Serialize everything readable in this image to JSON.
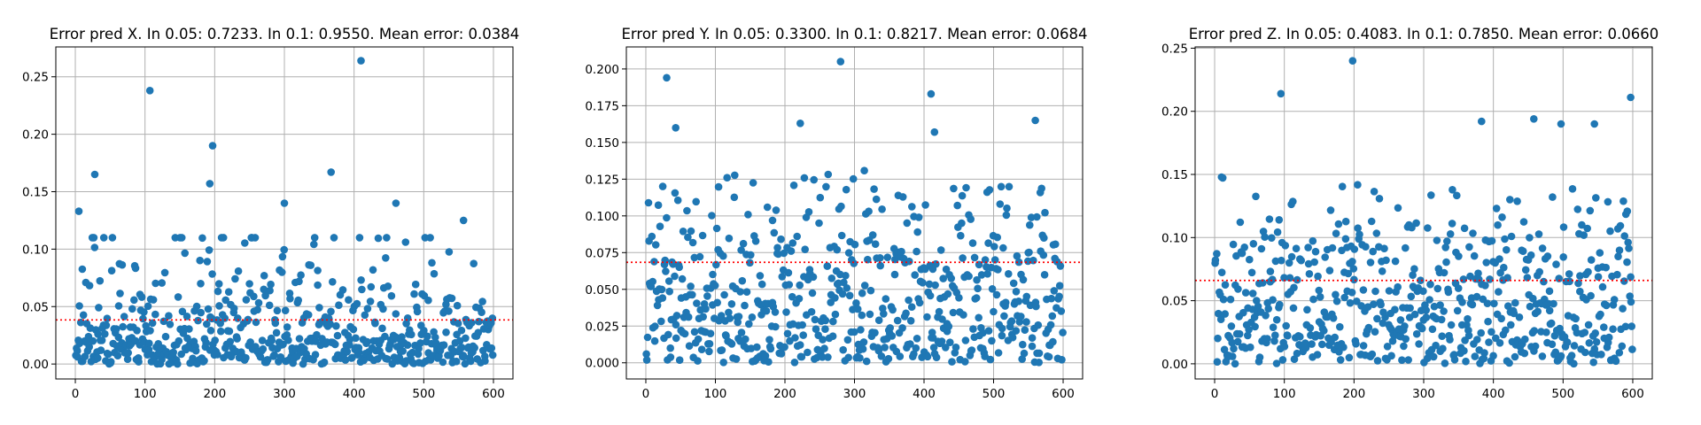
{
  "colors": {
    "point": "#1f77b4",
    "mean_line": "#ff0000",
    "grid": "#b0b0b0"
  },
  "chart_data": [
    {
      "type": "scatter",
      "title": "Error pred X. In 0.05: 0.7233. In 0.1: 0.9550. Mean error: 0.0384",
      "xlabel": "",
      "ylabel": "",
      "xlim": [
        -28,
        628
      ],
      "ylim": [
        -0.013,
        0.276
      ],
      "xticks": [
        0,
        100,
        200,
        300,
        400,
        500,
        600
      ],
      "xtick_labels": [
        "0",
        "100",
        "200",
        "300",
        "400",
        "500",
        "600"
      ],
      "yticks": [
        0,
        0.05,
        0.1,
        0.15,
        0.2,
        0.25
      ],
      "ytick_labels": [
        "0.00",
        "0.05",
        "0.10",
        "0.15",
        "0.20",
        "0.25"
      ],
      "grid": true,
      "mean_error": 0.0384,
      "n_points": 600,
      "notable_points": [
        {
          "x": 5,
          "y": 0.133
        },
        {
          "x": 28,
          "y": 0.165
        },
        {
          "x": 107,
          "y": 0.238
        },
        {
          "x": 193,
          "y": 0.157
        },
        {
          "x": 197,
          "y": 0.19
        },
        {
          "x": 300,
          "y": 0.14
        },
        {
          "x": 367,
          "y": 0.167
        },
        {
          "x": 410,
          "y": 0.264
        },
        {
          "x": 460,
          "y": 0.14
        },
        {
          "x": 557,
          "y": 0.125
        }
      ],
      "bulk_max": 0.11
    },
    {
      "type": "scatter",
      "title": "Error pred Y. In 0.05: 0.3300. In 0.1: 0.8217. Mean error: 0.0684",
      "xlabel": "",
      "ylabel": "",
      "xlim": [
        -28,
        628
      ],
      "ylim": [
        -0.011,
        0.215
      ],
      "xticks": [
        0,
        100,
        200,
        300,
        400,
        500,
        600
      ],
      "xtick_labels": [
        "0",
        "100",
        "200",
        "300",
        "400",
        "500",
        "600"
      ],
      "yticks": [
        0,
        0.025,
        0.05,
        0.075,
        0.1,
        0.125,
        0.15,
        0.175,
        0.2
      ],
      "ytick_labels": [
        "0.000",
        "0.025",
        "0.050",
        "0.075",
        "0.100",
        "0.125",
        "0.150",
        "0.175",
        "0.200"
      ],
      "grid": true,
      "mean_error": 0.0684,
      "n_points": 600,
      "notable_points": [
        {
          "x": 30,
          "y": 0.194
        },
        {
          "x": 43,
          "y": 0.16
        },
        {
          "x": 280,
          "y": 0.205
        },
        {
          "x": 410,
          "y": 0.183
        },
        {
          "x": 415,
          "y": 0.157
        },
        {
          "x": 560,
          "y": 0.165
        },
        {
          "x": 222,
          "y": 0.163
        }
      ],
      "bulk_max": 0.14
    },
    {
      "type": "scatter",
      "title": "Error pred Z. In 0.05: 0.4083. In 0.1: 0.7850. Mean error: 0.0660",
      "xlabel": "",
      "ylabel": "",
      "xlim": [
        -28,
        628
      ],
      "ylim": [
        -0.012,
        0.251
      ],
      "xticks": [
        0,
        100,
        200,
        300,
        400,
        500,
        600
      ],
      "xtick_labels": [
        "0",
        "100",
        "200",
        "300",
        "400",
        "500",
        "600"
      ],
      "yticks": [
        0,
        0.05,
        0.1,
        0.15,
        0.2,
        0.25
      ],
      "ytick_labels": [
        "0.00",
        "0.05",
        "0.10",
        "0.15",
        "0.20",
        "0.25"
      ],
      "grid": true,
      "mean_error": 0.066,
      "n_points": 600,
      "notable_points": [
        {
          "x": 95,
          "y": 0.214
        },
        {
          "x": 198,
          "y": 0.24
        },
        {
          "x": 383,
          "y": 0.192
        },
        {
          "x": 458,
          "y": 0.194
        },
        {
          "x": 497,
          "y": 0.19
        },
        {
          "x": 545,
          "y": 0.19
        },
        {
          "x": 597,
          "y": 0.211
        }
      ],
      "bulk_max": 0.16
    }
  ]
}
